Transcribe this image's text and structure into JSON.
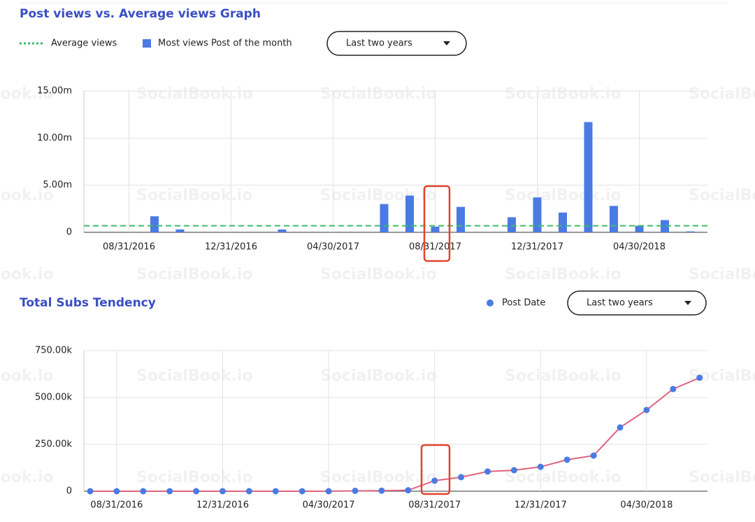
{
  "watermark": "SocialBook.io",
  "chart_data": [
    {
      "type": "bar",
      "title": "Post views vs. Average views Graph",
      "dropdown": "Last two years",
      "categories": [
        null,
        "08/31/2016",
        null,
        null,
        null,
        "12/31/2016",
        null,
        null,
        null,
        "04/30/2017",
        null,
        null,
        null,
        "08/31/2017",
        null,
        null,
        null,
        "12/31/2017",
        null,
        null,
        null,
        "04/30/2018",
        null,
        null
      ],
      "series": [
        {
          "name": "Most views Post of the month",
          "color": "#4a7be3",
          "values": [
            0,
            0,
            1.7,
            0.3,
            0,
            0,
            0,
            0.3,
            0,
            0,
            0,
            3.0,
            3.9,
            0.6,
            2.7,
            0,
            1.6,
            3.7,
            2.1,
            11.7,
            2.8,
            0.7,
            1.3,
            0.1
          ]
        }
      ],
      "average_line": {
        "name": "Average views",
        "color": "#3dbb6b",
        "value": 0.7
      },
      "ylim": [
        0,
        15
      ],
      "yticks": [
        0,
        {
          "value": 5,
          "label": "5.00m"
        },
        {
          "value": 10,
          "label": "10.00m"
        },
        {
          "value": 15,
          "label": "15.00m"
        }
      ],
      "grid": true
    },
    {
      "type": "line",
      "title": "Total Subs Tendency",
      "dropdown": "Last two years",
      "categories": [
        null,
        "08/31/2016",
        null,
        null,
        null,
        "12/31/2016",
        null,
        null,
        null,
        "04/30/2017",
        null,
        null,
        null,
        "08/31/2017",
        null,
        null,
        null,
        "12/31/2017",
        null,
        null,
        null,
        "04/30/2018",
        null,
        null
      ],
      "series": [
        {
          "name": "Post Date",
          "color": "#e0637f",
          "marker_color": "#4a7be3",
          "values": [
            0,
            0,
            0,
            0,
            0,
            0,
            0,
            0,
            0,
            0,
            2,
            3,
            5,
            56,
            75,
            105,
            112,
            130,
            168,
            190,
            340,
            433,
            545,
            605
          ]
        }
      ],
      "ylim": [
        0,
        750
      ],
      "yticks": [
        0,
        {
          "value": 250,
          "label": "250.00k"
        },
        {
          "value": 500,
          "label": "500.00k"
        },
        {
          "value": 750,
          "label": "750.00k"
        }
      ],
      "grid": true
    }
  ]
}
